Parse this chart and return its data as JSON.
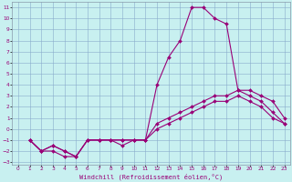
{
  "xlabel": "Windchill (Refroidissement éolien,°C)",
  "bg_color": "#c8f0f0",
  "line_color": "#990077",
  "grid_color": "#88aacc",
  "xlim": [
    -0.5,
    23.5
  ],
  "ylim": [
    -3.2,
    11.5
  ],
  "xticks": [
    0,
    1,
    2,
    3,
    4,
    5,
    6,
    7,
    8,
    9,
    10,
    11,
    12,
    13,
    14,
    15,
    16,
    17,
    18,
    19,
    20,
    21,
    22,
    23
  ],
  "yticks": [
    -3,
    -2,
    -1,
    0,
    1,
    2,
    3,
    4,
    5,
    6,
    7,
    8,
    9,
    10,
    11
  ],
  "line1_x": [
    1,
    2,
    3,
    4,
    5,
    6,
    7,
    8,
    9,
    10,
    11,
    12,
    13,
    14,
    15,
    16,
    17,
    18,
    19,
    20,
    21,
    22,
    23
  ],
  "line1_y": [
    -1,
    -2,
    -1.5,
    -2,
    -2.5,
    -1,
    -1,
    -1,
    -1,
    -1,
    -1,
    4,
    6.5,
    8,
    11,
    11,
    10,
    9.5,
    3.5,
    3.5,
    3,
    2.5,
    1
  ],
  "line2_x": [
    1,
    2,
    3,
    4,
    5,
    6,
    7,
    8,
    9,
    10,
    11,
    12,
    13,
    14,
    15,
    16,
    17,
    18,
    19,
    20,
    21,
    22,
    23
  ],
  "line2_y": [
    -1,
    -2,
    -1.5,
    -2,
    -2.5,
    -1,
    -1,
    -1,
    -1,
    -1,
    -1,
    0.5,
    1,
    1.5,
    2,
    2.5,
    3,
    3,
    3.5,
    3,
    2.5,
    1.5,
    0.5
  ],
  "line3_x": [
    1,
    2,
    3,
    4,
    5,
    6,
    7,
    8,
    9,
    10,
    11,
    12,
    13,
    14,
    15,
    16,
    17,
    18,
    19,
    20,
    21,
    22,
    23
  ],
  "line3_y": [
    -1,
    -2,
    -2,
    -2.5,
    -2.5,
    -1,
    -1,
    -1,
    -1.5,
    -1,
    -1,
    0,
    0.5,
    1,
    1.5,
    2,
    2.5,
    2.5,
    3,
    2.5,
    2,
    1,
    0.5
  ],
  "lw": 0.8,
  "ms": 2.0,
  "xlabel_fontsize": 5.0,
  "tick_fontsize": 4.2
}
